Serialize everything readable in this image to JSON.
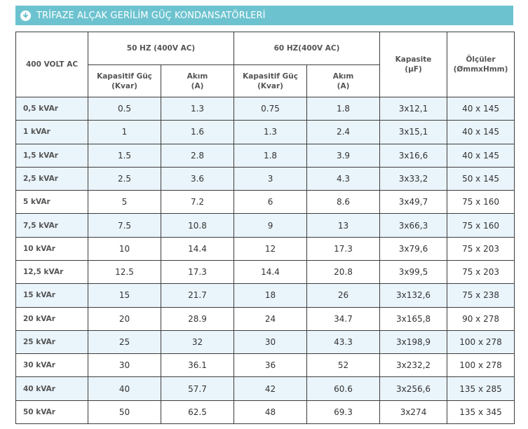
{
  "title": "TRİFAZE ALÇAK GERİLİM GÜÇ KONDANSATÖRLERİ",
  "title_icon": "download-circle-icon",
  "colors": {
    "title_bar": "#6cc3cf",
    "row_alt": "#eaf4fb",
    "border": "#3d3d3d"
  },
  "table": {
    "corner": "400 VOLT AC",
    "group_50": "50 HZ (400V AC)",
    "group_60": "60 HZ(400V AC)",
    "col_kapasite": "Kapasite\n(µF)",
    "col_olculer": "Ölçüler\n(ØmmxHmm)",
    "sub_guc_50": "Kapasitif Güç\n(Kvar)",
    "sub_akim_50": "Akım\n(A)",
    "sub_guc_60": "Kapasitif Güç\n(Kvar)",
    "sub_akim_60": "Akım\n(A)",
    "rows": [
      {
        "label": "0,5 kVAr",
        "guc50": "0.5",
        "akim50": "1.3",
        "guc60": "0.75",
        "akim60": "1.8",
        "kapasite": "3x12,1",
        "olcu": "40 x 145",
        "alt": true
      },
      {
        "label": "1 kVAr",
        "guc50": "1",
        "akim50": "1.6",
        "guc60": "1.3",
        "akim60": "2.4",
        "kapasite": "3x15,1",
        "olcu": "40 x 145",
        "alt": true
      },
      {
        "label": "1,5 kVAr",
        "guc50": "1.5",
        "akim50": "2.8",
        "guc60": "1.8",
        "akim60": "3.9",
        "kapasite": "3x16,6",
        "olcu": "40 x 145",
        "alt": true
      },
      {
        "label": "2,5 kVAr",
        "guc50": "2.5",
        "akim50": "3.6",
        "guc60": "3",
        "akim60": "4.3",
        "kapasite": "3x33,2",
        "olcu": "50 x 145",
        "alt": true
      },
      {
        "label": "5 kVAr",
        "guc50": "5",
        "akim50": "7.2",
        "guc60": "6",
        "akim60": "8.6",
        "kapasite": "3x49,7",
        "olcu": "75 x 160",
        "alt": false
      },
      {
        "label": "7,5 kVAr",
        "guc50": "7.5",
        "akim50": "10.8",
        "guc60": "9",
        "akim60": "13",
        "kapasite": "3x66,3",
        "olcu": "75 x 160",
        "alt": true
      },
      {
        "label": "10 kVAr",
        "guc50": "10",
        "akim50": "14.4",
        "guc60": "12",
        "akim60": "17.3",
        "kapasite": "3x79,6",
        "olcu": "75 x 203",
        "alt": false
      },
      {
        "label": "12,5 kVAr",
        "guc50": "12.5",
        "akim50": "17.3",
        "guc60": "14.4",
        "akim60": "20.8",
        "kapasite": "3x99,5",
        "olcu": "75 x 203",
        "alt": false
      },
      {
        "label": "15 kVAr",
        "guc50": "15",
        "akim50": "21.7",
        "guc60": "18",
        "akim60": "26",
        "kapasite": "3x132,6",
        "olcu": "75 x 238",
        "alt": true
      },
      {
        "label": "20 kVAr",
        "guc50": "20",
        "akim50": "28.9",
        "guc60": "24",
        "akim60": "34.7",
        "kapasite": "3x165,8",
        "olcu": "90 x 278",
        "alt": false
      },
      {
        "label": "25 kVAr",
        "guc50": "25",
        "akim50": "32",
        "guc60": "30",
        "akim60": "43.3",
        "kapasite": "3x198,9",
        "olcu": "100 x 278",
        "alt": true
      },
      {
        "label": "30 kVAr",
        "guc50": "30",
        "akim50": "36.1",
        "guc60": "36",
        "akim60": "52",
        "kapasite": "3x232,2",
        "olcu": "100 x 278",
        "alt": false
      },
      {
        "label": "40 kVAr",
        "guc50": "40",
        "akim50": "57.7",
        "guc60": "42",
        "akim60": "60.6",
        "kapasite": "3x256,6",
        "olcu": "135 x 285",
        "alt": true
      },
      {
        "label": "50 kVAr",
        "guc50": "50",
        "akim50": "62.5",
        "guc60": "48",
        "akim60": "69.3",
        "kapasite": "3x274",
        "olcu": "135 x 345",
        "alt": false
      }
    ]
  }
}
